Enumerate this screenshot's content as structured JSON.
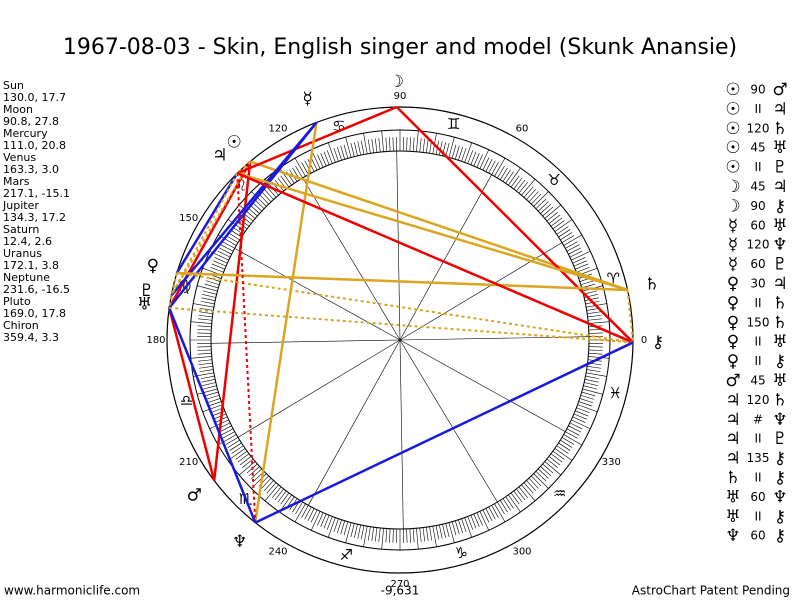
{
  "header": {
    "title": "1967-08-03 - Skin, English singer and model (Skunk Anansie)"
  },
  "planets": [
    {
      "name": "Sun",
      "position": "130.0, 17.7",
      "glyph": "☉"
    },
    {
      "name": "Moon",
      "position": "90.8, 27.8",
      "glyph": "☽"
    },
    {
      "name": "Mercury",
      "position": "111.0, 20.8",
      "glyph": "☿"
    },
    {
      "name": "Venus",
      "position": "163.3, 3.0",
      "glyph": "♀"
    },
    {
      "name": "Mars",
      "position": "217.1, -15.1",
      "glyph": "♂"
    },
    {
      "name": "Jupiter",
      "position": "134.3, 17.2",
      "glyph": "♃"
    },
    {
      "name": "Saturn",
      "position": "12.4, 2.6",
      "glyph": "♄"
    },
    {
      "name": "Uranus",
      "position": "172.1, 3.8",
      "glyph": "♅"
    },
    {
      "name": "Neptune",
      "position": "231.6, -16.5",
      "glyph": "♆"
    },
    {
      "name": "Pluto",
      "position": "169.0, 17.8",
      "glyph": "♇"
    },
    {
      "name": "Chiron",
      "position": "359.4, 3.3",
      "glyph": "⚷"
    }
  ],
  "aspects": [
    {
      "from": "☉",
      "aspect": "90",
      "to": "♂"
    },
    {
      "from": "☉",
      "aspect": "II",
      "to": "♃"
    },
    {
      "from": "☉",
      "aspect": "120",
      "to": "♄"
    },
    {
      "from": "☉",
      "aspect": "45",
      "to": "♅"
    },
    {
      "from": "☉",
      "aspect": "II",
      "to": "♇"
    },
    {
      "from": "☽",
      "aspect": "45",
      "to": "♃"
    },
    {
      "from": "☽",
      "aspect": "90",
      "to": "⚷"
    },
    {
      "from": "☿",
      "aspect": "60",
      "to": "♅"
    },
    {
      "from": "☿",
      "aspect": "120",
      "to": "♆"
    },
    {
      "from": "☿",
      "aspect": "60",
      "to": "♇"
    },
    {
      "from": "♀",
      "aspect": "30",
      "to": "♃"
    },
    {
      "from": "♀",
      "aspect": "II",
      "to": "♄"
    },
    {
      "from": "♀",
      "aspect": "150",
      "to": "♄"
    },
    {
      "from": "♀",
      "aspect": "II",
      "to": "♅"
    },
    {
      "from": "♀",
      "aspect": "II",
      "to": "⚷"
    },
    {
      "from": "♂",
      "aspect": "45",
      "to": "♅"
    },
    {
      "from": "♃",
      "aspect": "120",
      "to": "♄"
    },
    {
      "from": "♃",
      "aspect": "#",
      "to": "♆"
    },
    {
      "from": "♃",
      "aspect": "II",
      "to": "♇"
    },
    {
      "from": "♃",
      "aspect": "135",
      "to": "⚷"
    },
    {
      "from": "♄",
      "aspect": "II",
      "to": "⚷"
    },
    {
      "from": "♅",
      "aspect": "60",
      "to": "♆"
    },
    {
      "from": "♅",
      "aspect": "II",
      "to": "⚷"
    },
    {
      "from": "♆",
      "aspect": "60",
      "to": "⚷"
    }
  ],
  "signs": [
    "♈",
    "♉",
    "♊",
    "♋",
    "♌",
    "♍",
    "♎",
    "♏",
    "♐",
    "♑",
    "♒",
    "♓"
  ],
  "degree_labels": [
    0,
    60,
    90,
    120,
    150,
    180,
    210,
    240,
    270,
    300,
    330
  ],
  "footer": {
    "left": "www.harmoniclife.com",
    "center": "-9,631",
    "right": "AstroChart Patent Pending"
  }
}
